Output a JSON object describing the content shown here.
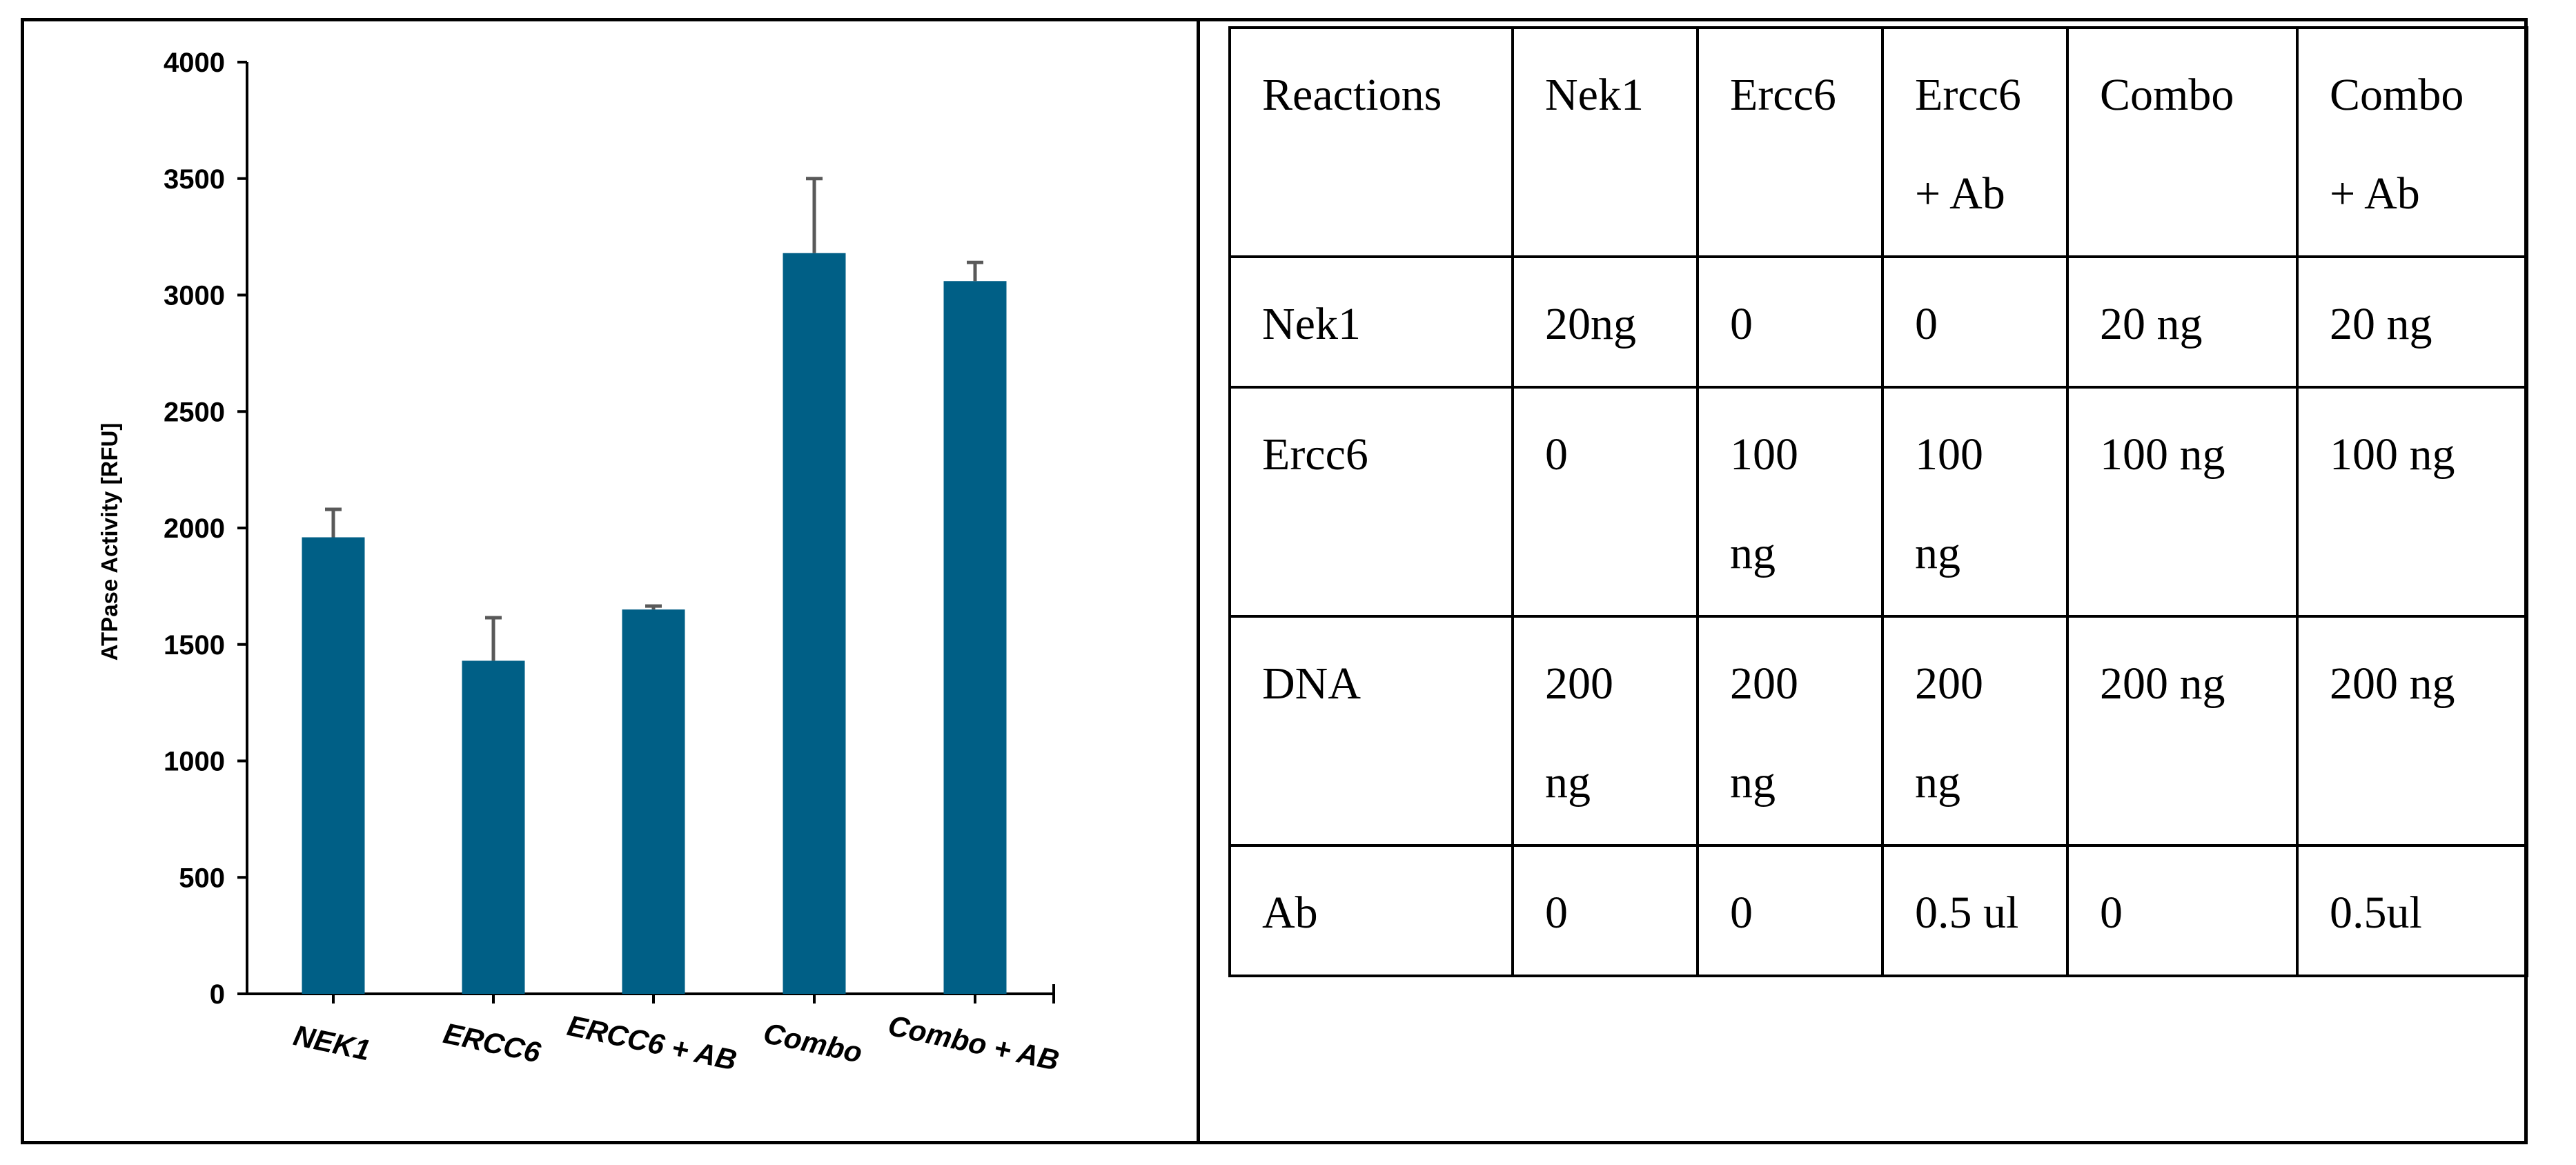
{
  "chart_data": {
    "type": "bar",
    "categories": [
      "NEK1",
      "ERCC6",
      "ERCC6 + AB",
      "Combo",
      "Combo + AB"
    ],
    "values": [
      1960,
      1430,
      1650,
      3180,
      3060
    ],
    "error_bars": [
      120,
      185,
      15,
      320,
      80
    ],
    "ylabel": "ATPase Activity [RFU]",
    "xlabel": "",
    "ylim": [
      0,
      4000
    ],
    "yticks": [
      0,
      500,
      1000,
      1500,
      2000,
      2500,
      3000,
      3500,
      4000
    ],
    "bar_color": "#005f86",
    "error_color": "#595959",
    "grid": false,
    "legend": "none"
  },
  "table": {
    "headers": [
      [
        "Reactions"
      ],
      [
        "Nek1"
      ],
      [
        "Ercc6"
      ],
      [
        "Ercc6",
        "+ Ab"
      ],
      [
        "Combo"
      ],
      [
        "Combo",
        "+ Ab"
      ]
    ],
    "rows": [
      [
        [
          "Nek1"
        ],
        [
          "20ng"
        ],
        [
          "0"
        ],
        [
          "0"
        ],
        [
          "20 ng"
        ],
        [
          "20 ng"
        ]
      ],
      [
        [
          "Ercc6"
        ],
        [
          "0"
        ],
        [
          "100",
          "ng"
        ],
        [
          "100",
          "ng"
        ],
        [
          "100 ng"
        ],
        [
          "100 ng"
        ]
      ],
      [
        [
          "DNA"
        ],
        [
          "200",
          "ng"
        ],
        [
          "200",
          "ng"
        ],
        [
          "200",
          "ng"
        ],
        [
          "200 ng"
        ],
        [
          "200 ng"
        ]
      ],
      [
        [
          "Ab"
        ],
        [
          "0"
        ],
        [
          "0"
        ],
        [
          "0.5 ul"
        ],
        [
          "0"
        ],
        [
          "0.5ul"
        ]
      ]
    ]
  }
}
